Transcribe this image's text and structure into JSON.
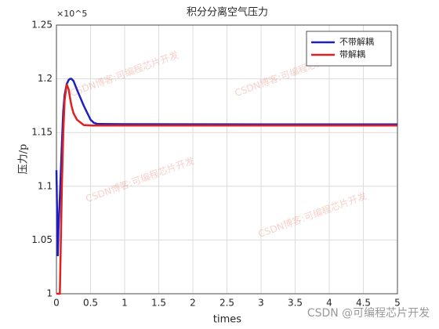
{
  "chart_data": {
    "type": "line",
    "title": "积分分离空气压力",
    "xlabel": "times",
    "ylabel": "压力/p",
    "y_exponent": "×10^5",
    "x": [
      0,
      0.02,
      0.03,
      0.05,
      0.08,
      0.1,
      0.12,
      0.15,
      0.18,
      0.2,
      0.22,
      0.25,
      0.3,
      0.4,
      0.5,
      0.55,
      0.6,
      1,
      2,
      3,
      4,
      5
    ],
    "series": [
      {
        "name": "不带解耦",
        "color": "#1f1fbf",
        "values": [
          1.115,
          1.035,
          1.06,
          1.09,
          1.14,
          1.17,
          1.185,
          1.195,
          1.199,
          1.2,
          1.2,
          1.198,
          1.19,
          1.175,
          1.162,
          1.159,
          1.158,
          1.1578,
          1.1577,
          1.1576,
          1.1576,
          1.1576
        ]
      },
      {
        "name": "带解耦",
        "color": "#e02020",
        "values": [
          1.0,
          1.0,
          1.0,
          1.0,
          1.1,
          1.15,
          1.18,
          1.195,
          1.19,
          1.182,
          1.175,
          1.168,
          1.162,
          1.157,
          1.1566,
          1.1565,
          1.1565,
          1.1565,
          1.1565,
          1.1565,
          1.1565,
          1.1565
        ]
      }
    ],
    "xlim": [
      0,
      5
    ],
    "xticks": [
      0,
      0.5,
      1,
      1.5,
      2,
      2.5,
      3,
      3.5,
      4,
      4.5,
      5
    ],
    "ylim": [
      1,
      1.25
    ],
    "yticks": [
      1,
      1.05,
      1.1,
      1.15,
      1.2,
      1.25
    ],
    "grid": true,
    "legend": "top-right",
    "watermark": "CSDN博客:可编程芯片开发",
    "footer": "CSDN @可编程芯片开发"
  }
}
